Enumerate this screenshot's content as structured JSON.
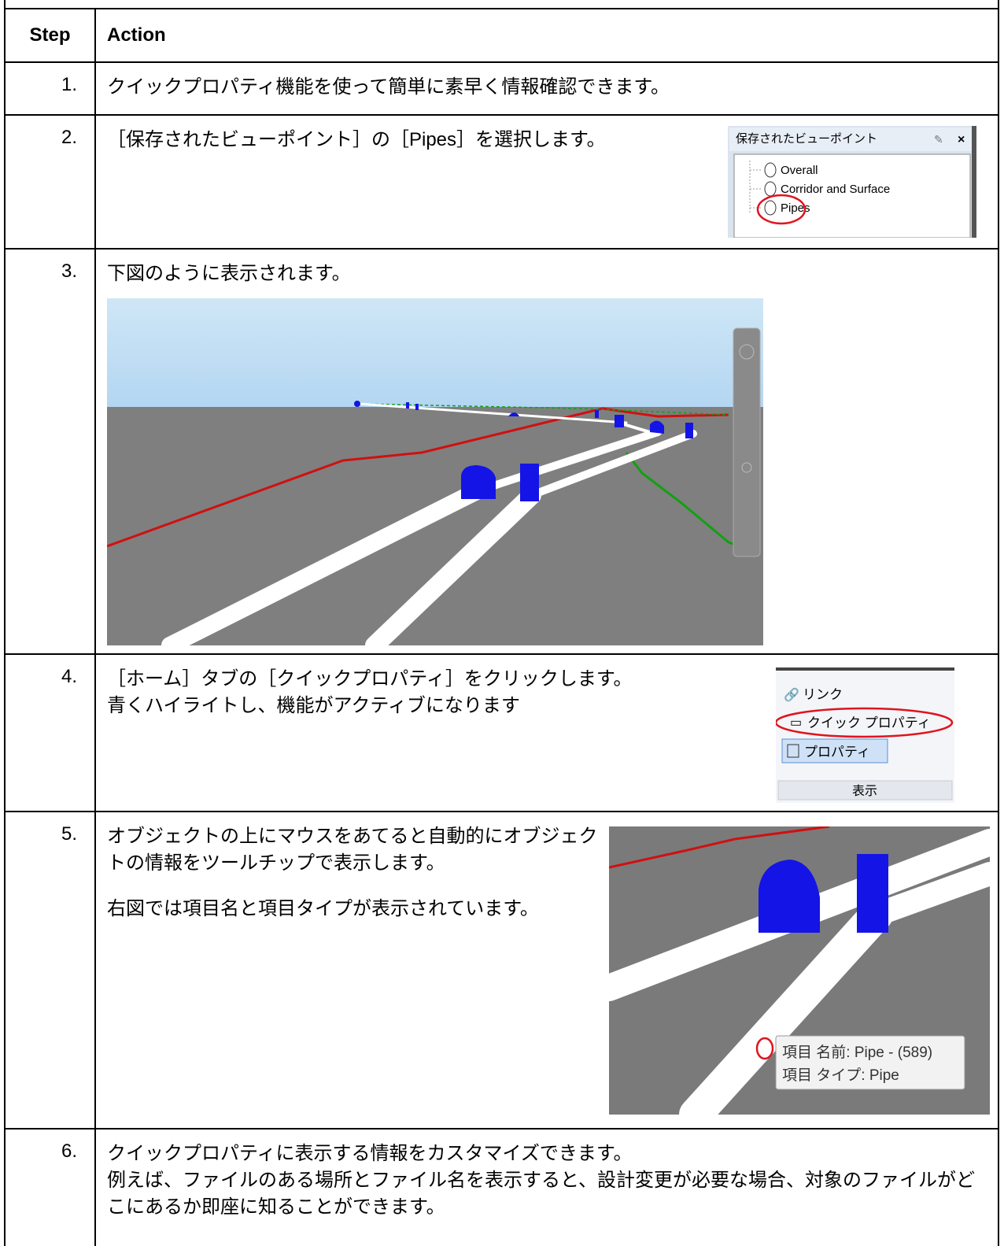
{
  "table": {
    "header": {
      "step": "Step",
      "action": "Action"
    },
    "rows": [
      {
        "step": "1.",
        "lines": [
          "クイックプロパティ機能を使って簡単に素早く情報確認できます。"
        ]
      },
      {
        "step": "2.",
        "lines": [
          "［保存されたビューポイント］の［Pipes］を選択します。"
        ],
        "panel": {
          "title": "保存されたビューポイント",
          "items": [
            "Overall",
            "Corridor and Surface",
            "Pipes"
          ]
        }
      },
      {
        "step": "3.",
        "lines": [
          "下図のように表示されます。"
        ]
      },
      {
        "step": "4.",
        "lines": [
          "［ホーム］タブの［クイックプロパティ］をクリックします。",
          "青くハイライトし、機能がアクティブになります"
        ],
        "ribbon": {
          "items": [
            "リンク",
            "クイック プロパティ",
            "プロパティ"
          ],
          "group": "表示"
        }
      },
      {
        "step": "5.",
        "lines": [
          "オブジェクトの上にマウスをあてると自動的にオブジェクトの情報をツールチップで表示します。",
          "右図では項目名と項目タイプが表示されています。"
        ],
        "tooltip": [
          "項目 名前: Pipe - (589)",
          "項目 タイプ: Pipe"
        ]
      },
      {
        "step": "6.",
        "lines": [
          "クイックプロパティに表示する情報をカスタマイズできます。",
          "例えば、ファイルのある場所とファイル名を表示すると、設計変更が必要な場合、対象のファイルがどこにあるか即座に知ることができます。"
        ]
      }
    ]
  }
}
